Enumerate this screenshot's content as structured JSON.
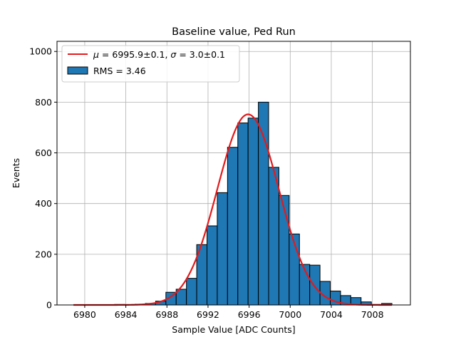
{
  "chart_data": {
    "type": "bar",
    "title": "Baseline value, Ped Run",
    "xlabel": "Sample Value [ADC Counts]",
    "ylabel": "Events",
    "xlim": [
      6977.3,
      7011.7
    ],
    "ylim": [
      0,
      1040
    ],
    "xticks": [
      6980,
      6984,
      6988,
      6992,
      6996,
      7000,
      7004,
      7008
    ],
    "yticks": [
      0,
      200,
      400,
      600,
      800,
      1000
    ],
    "grid": true,
    "legend_position": "top-left",
    "histogram": {
      "name": "RMS = 3.46",
      "color": "#1f77b4",
      "edge_color": "#000000",
      "bin_edges": [
        6978.9,
        6979.9,
        6980.9,
        6981.9,
        6982.9,
        6983.9,
        6984.9,
        6985.9,
        6986.9,
        6987.9,
        6988.9,
        6989.9,
        6990.9,
        6991.9,
        6992.9,
        6993.9,
        6994.9,
        6995.9,
        6996.9,
        6997.9,
        6998.9,
        6999.9,
        7000.9,
        7001.9,
        7002.9,
        7003.9,
        7004.9,
        7005.9,
        7006.9,
        7007.9,
        7008.9,
        7009.9
      ],
      "counts": [
        0,
        1,
        0,
        1,
        2,
        1,
        3,
        6,
        15,
        50,
        62,
        105,
        238,
        312,
        443,
        622,
        718,
        737,
        800,
        543,
        432,
        280,
        160,
        157,
        93,
        55,
        37,
        29,
        12,
        2,
        6
      ]
    },
    "fit": {
      "name": "$\\mu = 6995.9 \\pm 0.1$, $\\sigma = 3.0 \\pm 0.1$",
      "label_parts": {
        "mu_symbol": "μ",
        "mu_text": " = 6995.9±0.1, ",
        "sigma_symbol": "σ",
        "sigma_text": " = 3.0±0.1"
      },
      "color": "#e31a1c",
      "mu": 6995.9,
      "sigma": 3.0,
      "amplitude": 752,
      "x_range": [
        6978.9,
        7009.9
      ]
    },
    "legend": {
      "rms_label": "RMS = 3.46"
    }
  }
}
